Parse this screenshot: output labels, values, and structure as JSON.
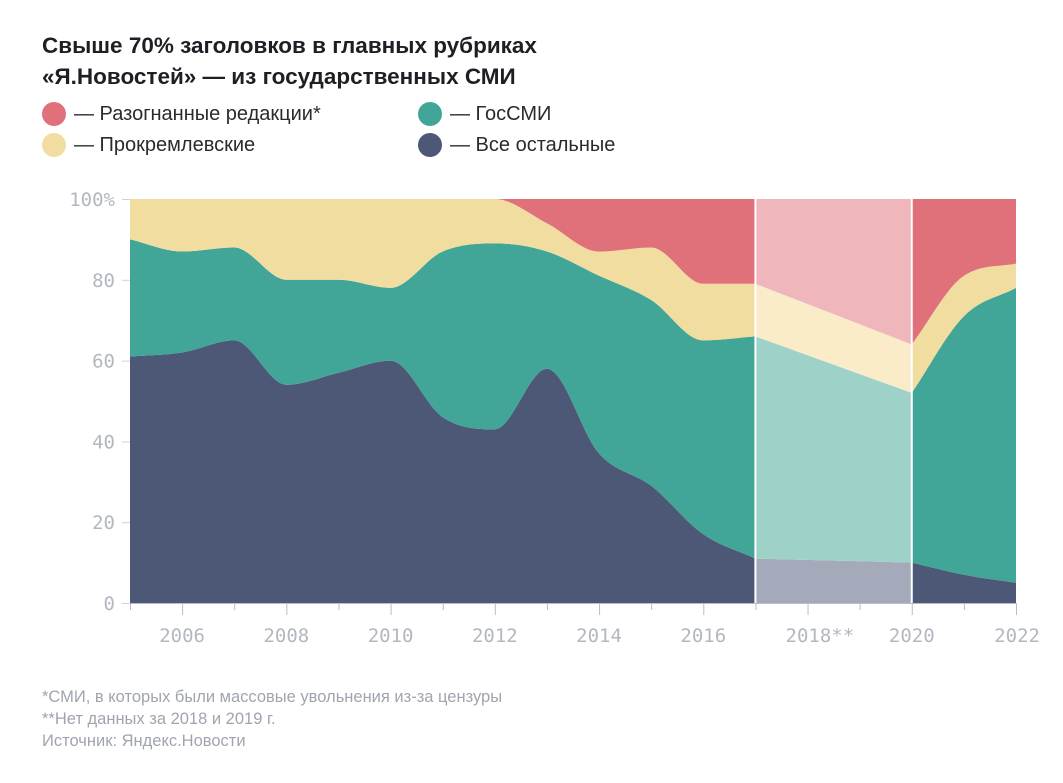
{
  "title": {
    "line1": "Свыше 70% заголовков в главных рубриках",
    "line2": "«Я.Новостей» — из государственных СМИ"
  },
  "legend": [
    {
      "label": "— Разогнанные редакции*",
      "series": "dispersed"
    },
    {
      "label": "— ГосСМИ",
      "series": "state"
    },
    {
      "label": "— Прокремлевские",
      "series": "prokremlin"
    },
    {
      "label": "— Все остальные",
      "series": "others"
    }
  ],
  "colors": {
    "dispersed": "#e0707a",
    "state": "#41a597",
    "prokremlin": "#f2dda0",
    "others": "#4c5876",
    "gap_dispersed": "#efb6bc",
    "gap_state": "#9ed2c9",
    "gap_prokremlin": "#faecc9",
    "gap_others": "#a5aabb"
  },
  "footnotes": {
    "note1": "*СМИ, в которых были массовые увольнения из-за цензуры",
    "note2": "**Нет данных за 2018 и 2019 г.",
    "source": "Источник: Яндекс.Новости"
  },
  "chart_data": {
    "type": "area",
    "stacked": true,
    "title": "Свыше 70% заголовков в главных рубриках «Я.Новостей» — из государственных СМИ",
    "xlabel": "",
    "ylabel": "",
    "x": [
      2005,
      2006,
      2007,
      2008,
      2009,
      2010,
      2011,
      2012,
      2013,
      2014,
      2015,
      2016,
      2017,
      2020,
      2021,
      2022
    ],
    "xlim": [
      2005,
      2022
    ],
    "ylim": [
      0,
      100
    ],
    "yticks": [
      0,
      20,
      40,
      60,
      80,
      100
    ],
    "ytick_labels": [
      "0",
      "20",
      "40",
      "60",
      "80",
      "100%"
    ],
    "xticks": [
      2006,
      2008,
      2010,
      2012,
      2014,
      2016,
      2018,
      2020,
      2022
    ],
    "xtick_labels": [
      "2006",
      "2008",
      "2010",
      "2012",
      "2014",
      "2016",
      "2018**",
      "2020",
      "2022"
    ],
    "no_data_range": [
      2017,
      2020
    ],
    "series": [
      {
        "name": "Все остальные",
        "key": "others",
        "values": [
          61,
          62,
          65,
          54,
          57,
          60,
          46,
          43,
          58,
          37,
          29,
          17,
          11,
          10,
          7,
          5
        ]
      },
      {
        "name": "ГосСМИ",
        "key": "state",
        "values": [
          29,
          25,
          23,
          26,
          23,
          18,
          41,
          46,
          29,
          44,
          46,
          48,
          55,
          42,
          64,
          73
        ]
      },
      {
        "name": "Прокремлевские",
        "key": "prokremlin",
        "values": [
          10,
          13,
          12,
          20,
          20,
          22,
          13,
          11,
          7,
          6,
          13,
          14,
          13,
          12,
          10,
          6
        ]
      },
      {
        "name": "Разогнанные редакции*",
        "key": "dispersed",
        "values": [
          0,
          0,
          0,
          0,
          0,
          0,
          0,
          0,
          6,
          13,
          12,
          21,
          21,
          36,
          19,
          16
        ]
      }
    ]
  }
}
